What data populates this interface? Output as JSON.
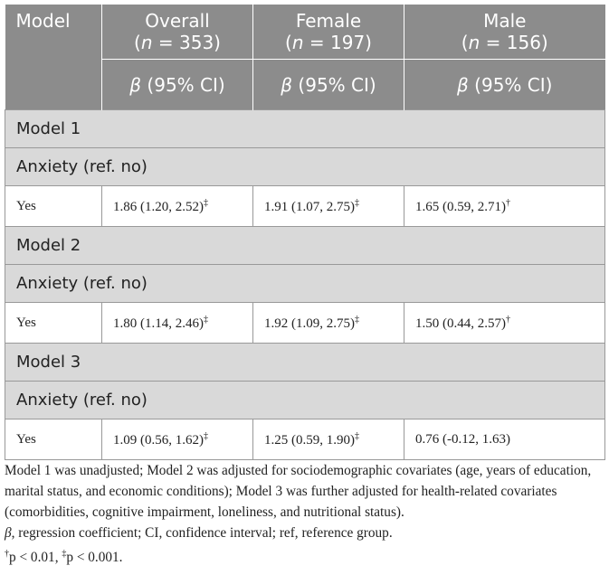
{
  "header": {
    "model": "Model",
    "columns": [
      {
        "name": "Overall",
        "sample": [
          "(",
          "n",
          " = 353)"
        ],
        "stat": [
          "β",
          " (95% CI)"
        ]
      },
      {
        "name": "Female",
        "sample": [
          "(",
          "n",
          " = 197)"
        ],
        "stat": [
          "β",
          " (95% CI)"
        ]
      },
      {
        "name": "Male",
        "sample": [
          "(",
          "n",
          " = 156)"
        ],
        "stat": [
          "β",
          " (95% CI)"
        ]
      }
    ]
  },
  "sections": [
    {
      "title": "Model 1",
      "subtitle": "Anxiety (ref. no)",
      "rows": [
        {
          "label": "Yes",
          "cells": [
            {
              "value": "1.86 (1.20, 2.52)",
              "note": "‡"
            },
            {
              "value": "1.91 (1.07, 2.75)",
              "note": "‡"
            },
            {
              "value": "1.65 (0.59, 2.71)",
              "note": "†"
            }
          ]
        }
      ]
    },
    {
      "title": "Model 2",
      "subtitle": "Anxiety (ref. no)",
      "rows": [
        {
          "label": "Yes",
          "cells": [
            {
              "value": "1.80 (1.14, 2.46)",
              "note": "‡"
            },
            {
              "value": "1.92 (1.09, 2.75)",
              "note": "‡"
            },
            {
              "value": "1.50 (0.44, 2.57)",
              "note": "†"
            }
          ]
        }
      ]
    },
    {
      "title": "Model 3",
      "subtitle": "Anxiety (ref. no)",
      "rows": [
        {
          "label": "Yes",
          "cells": [
            {
              "value": "1.09 (0.56, 1.62)",
              "note": "‡"
            },
            {
              "value": "1.25 (0.59, 1.90)",
              "note": "‡"
            },
            {
              "value": "0.76 (-0.12, 1.63)"
            }
          ]
        }
      ]
    }
  ],
  "footnotes": {
    "paragraph": "Model 1 was unadjusted; Model 2 was adjusted for sociodemographic covariates (age, years of education, marital status, and economic conditions); Model 3 was further adjusted for health-related covariates (comorbidities, cognitive impairment, loneliness, and nutritional status).",
    "abbreviations": [
      "β",
      ", regression coefficient; CI, confidence interval; ref, reference group."
    ],
    "significance": [
      "†",
      "p < 0.01, ",
      "‡",
      "p < 0.001."
    ]
  }
}
